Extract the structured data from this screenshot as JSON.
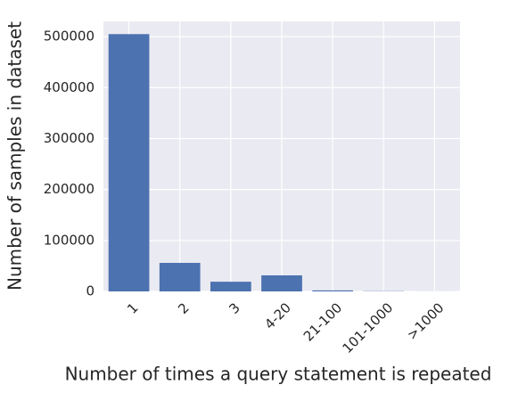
{
  "chart_data": {
    "type": "bar",
    "xlabel": "Number of times a query statement is repeated",
    "ylabel": "Number of samples in  dataset",
    "categories": [
      "1",
      "2",
      "3",
      "4-20",
      "21-100",
      "101-1000",
      ">1000"
    ],
    "values": [
      505000,
      56000,
      19000,
      31500,
      2000,
      500,
      100
    ],
    "color": "#4c72b0",
    "ylim": [
      0,
      530000
    ],
    "yticks": [
      0,
      100000,
      200000,
      300000,
      400000,
      500000
    ],
    "grid": true
  }
}
